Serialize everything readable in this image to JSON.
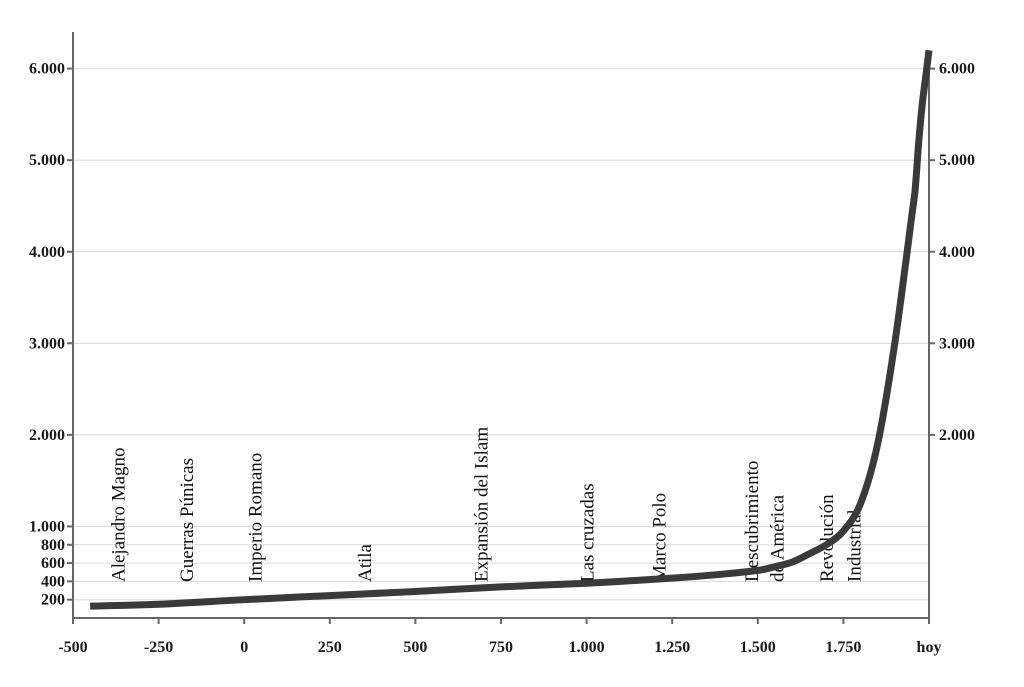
{
  "chart_data": {
    "type": "line",
    "title": "",
    "xlabel": "",
    "ylabel": "",
    "xlim": [
      -500,
      2000
    ],
    "ylim": [
      0,
      6400
    ],
    "x_ticks": [
      -500,
      -250,
      0,
      250,
      500,
      750,
      1000,
      1250,
      1500,
      1750,
      2000
    ],
    "x_tick_labels": [
      "-500",
      "-250",
      "0",
      "250",
      "500",
      "750",
      "1.000",
      "1.250",
      "1.500",
      "1.750",
      "hoy"
    ],
    "y_left_ticks": [
      200,
      400,
      600,
      800,
      1000,
      2000,
      3000,
      4000,
      5000,
      6000
    ],
    "y_left_tick_labels": [
      "200",
      "400",
      "600",
      "800",
      "1.000",
      "2.000",
      "3.000",
      "4.000",
      "5.000",
      "6.000"
    ],
    "y_right_ticks": [
      2000,
      3000,
      4000,
      5000,
      6000
    ],
    "y_right_tick_labels": [
      "2.000",
      "3.000",
      "4.000",
      "5.000",
      "6.000"
    ],
    "grid": true,
    "series": [
      {
        "color": "#3a3a3a",
        "x": [
          -450,
          -250,
          0,
          250,
          500,
          750,
          1000,
          1250,
          1400,
          1500,
          1550,
          1600,
          1650,
          1700,
          1750,
          1800,
          1850,
          1900,
          1950,
          1960,
          1970,
          1980,
          1990,
          2000
        ],
        "y": [
          130,
          150,
          200,
          245,
          290,
          340,
          380,
          435,
          480,
          520,
          560,
          610,
          700,
          800,
          950,
          1250,
          1900,
          3000,
          4400,
          4700,
          5200,
          5600,
          5900,
          6200
        ]
      }
    ],
    "annotations": [
      {
        "text": "Alejandro Magno",
        "x": -350
      },
      {
        "text": "Guerras Púnicas",
        "x": -150
      },
      {
        "text": "Imperio Romano",
        "x": 50
      },
      {
        "text": "Atila",
        "x": 370
      },
      {
        "text": "Expansión del Islam",
        "x": 710
      },
      {
        "text": "Las cruzadas",
        "x": 1020
      },
      {
        "text": "Marco Polo",
        "x": 1230
      },
      {
        "text": "Descubrimiento",
        "x": 1500
      },
      {
        "text": "de América",
        "x": 1575
      },
      {
        "text": "Revolución",
        "x": 1720
      },
      {
        "text": "Industrial",
        "x": 1800
      }
    ]
  }
}
